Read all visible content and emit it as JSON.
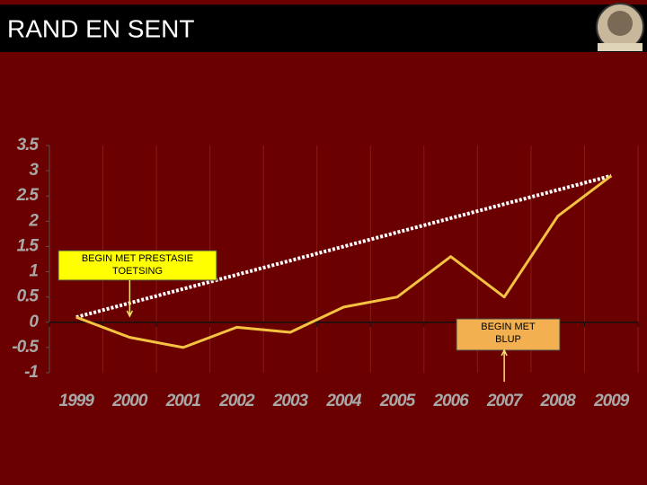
{
  "header": {
    "title": "RAND EN SENT"
  },
  "chart_data": {
    "type": "line",
    "categories": [
      "1999",
      "2000",
      "2001",
      "2002",
      "2003",
      "2004",
      "2005",
      "2006",
      "2007",
      "2008",
      "2009"
    ],
    "values": [
      0.1,
      -0.3,
      -0.5,
      -0.1,
      -0.2,
      0.3,
      0.5,
      1.3,
      0.5,
      2.1,
      2.9
    ],
    "color": "#f5c242",
    "trend_line": {
      "values": [
        0.1,
        2.9
      ],
      "color": "#ffffff"
    },
    "ylim": [
      -1,
      3.5
    ],
    "yticks": [
      3.5,
      3,
      2.5,
      2,
      1.5,
      1,
      0.5,
      0,
      -0.5,
      -1
    ],
    "grid": true,
    "annotations": [
      {
        "lines": [
          "BEGIN MET PRESTASIE",
          "TOETSING"
        ]
      },
      {
        "lines": [
          "BEGIN MET",
          "BLUP"
        ]
      }
    ]
  }
}
